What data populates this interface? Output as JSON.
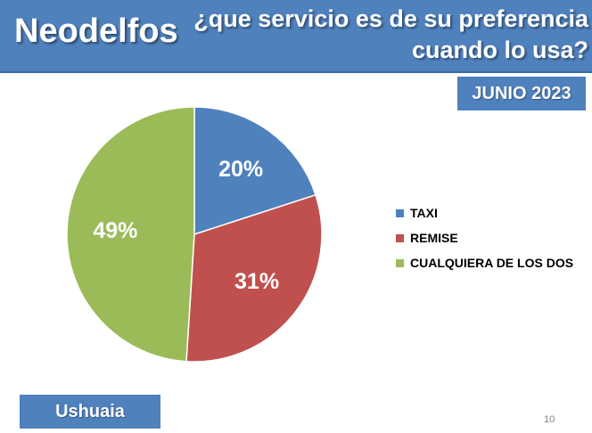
{
  "header": {
    "brand": "Neodelfos",
    "question_line1": "¿que servicio es de su preferencia",
    "question_line2": "cuando lo usa?"
  },
  "date_badge": "JUNIO 2023",
  "location": "Ushuaia",
  "page_number": "10",
  "colors": {
    "header": "#4f81bd",
    "taxi": "#4f81bd",
    "remise": "#c0504d",
    "cualquiera": "#9bbb59"
  },
  "chart_data": {
    "type": "pie",
    "categories": [
      "TAXI",
      "REMISE",
      "CUALQUIERA DE LOS DOS"
    ],
    "values": [
      20,
      31,
      49
    ],
    "labels": [
      "20%",
      "31%",
      "49%"
    ],
    "colors": [
      "#4f81bd",
      "#c0504d",
      "#9bbb59"
    ],
    "start_angle_deg": 0,
    "direction": "clockwise",
    "legend_position": "right"
  }
}
